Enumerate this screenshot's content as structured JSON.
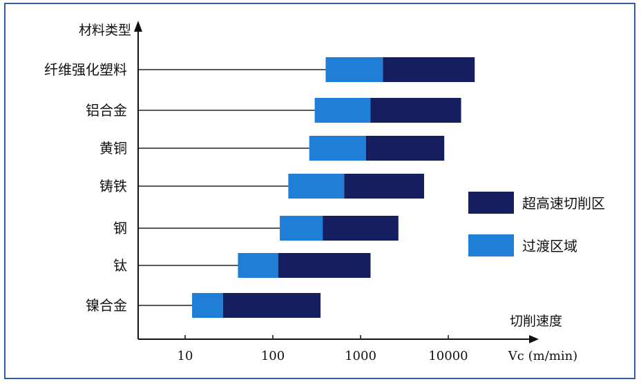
{
  "chart_data": {
    "type": "bar",
    "subtype": "horizontal-range-stacked",
    "x_scale": "log",
    "xlim": [
      10,
      40000
    ],
    "x_ticks": [
      "10",
      "100",
      "1000",
      "10000"
    ],
    "y_axis_title": "材料类型",
    "x_axis_title": "切削速度",
    "x_unit_label": "Vc (m/min)",
    "categories": [
      "纤维强化塑料",
      "铝合金",
      "黄铜",
      "铸铁",
      "钢",
      "钛",
      "镍合金"
    ],
    "series": [
      {
        "name": "过渡区域",
        "color": "#1f7ed6",
        "ranges": [
          [
            400,
            1800
          ],
          [
            300,
            1300
          ],
          [
            260,
            1150
          ],
          [
            150,
            650
          ],
          [
            120,
            370
          ],
          [
            40,
            115
          ],
          [
            12,
            27
          ]
        ]
      },
      {
        "name": "超高速切削区",
        "color": "#151e5e",
        "ranges": [
          [
            1800,
            20000
          ],
          [
            1300,
            14000
          ],
          [
            1150,
            9000
          ],
          [
            650,
            5300
          ],
          [
            370,
            2700
          ],
          [
            115,
            1300
          ],
          [
            27,
            350
          ]
        ]
      }
    ],
    "legend_position": "right",
    "legend_order": [
      "超高速切削区",
      "过渡区域"
    ],
    "grid": false
  }
}
